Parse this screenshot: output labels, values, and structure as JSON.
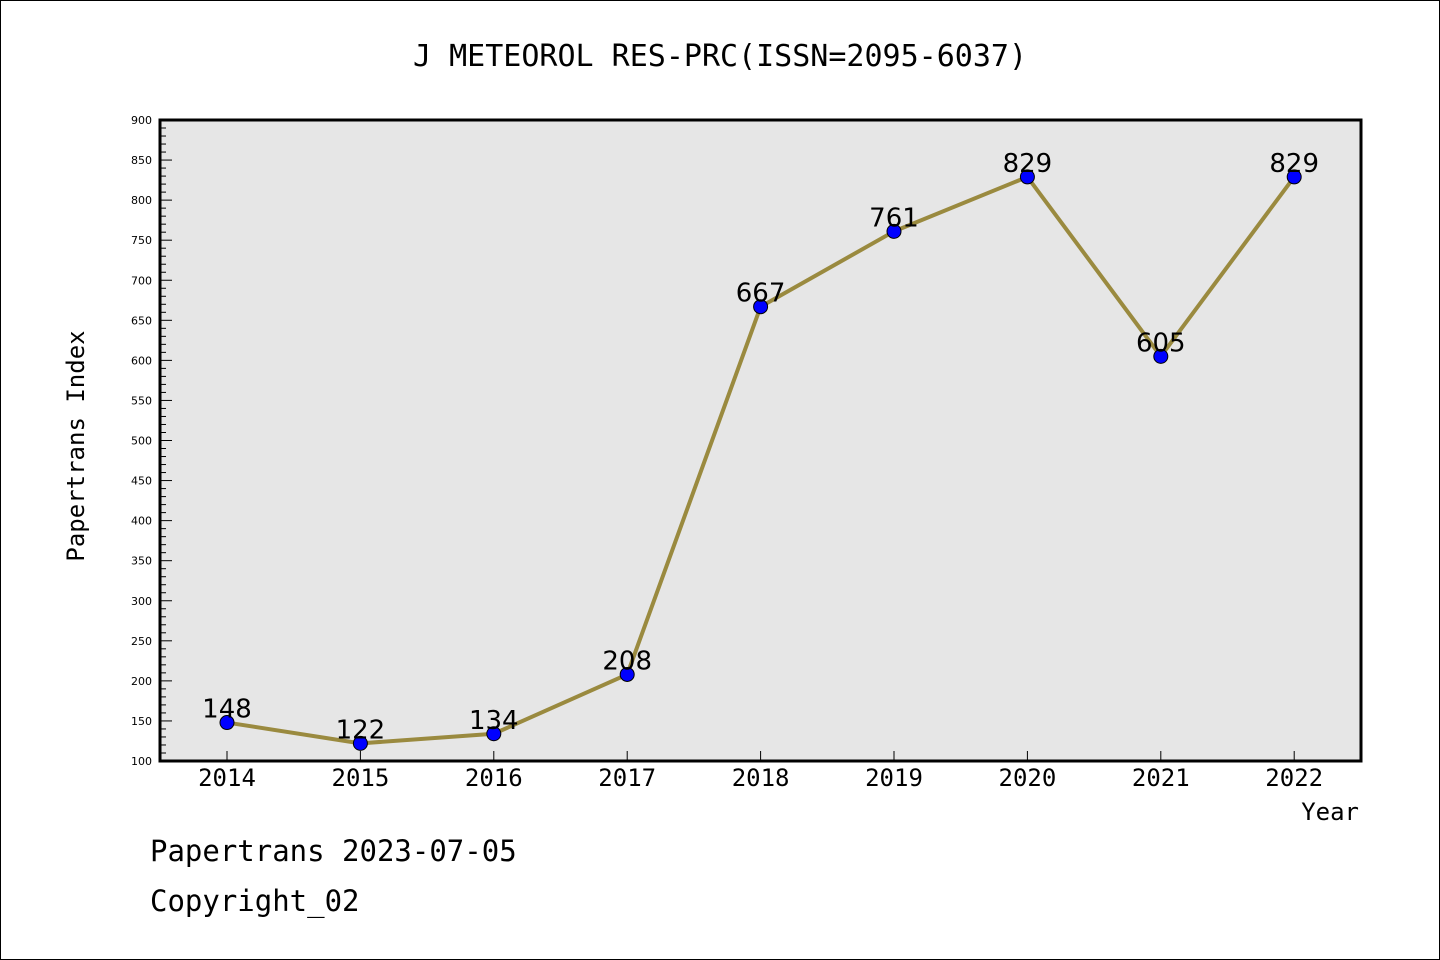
{
  "chart_data": {
    "type": "line",
    "title": "J METEOROL RES-PRC(ISSN=2095-6037)",
    "xlabel": "Year",
    "ylabel": "Papertrans Index",
    "categories": [
      "2014",
      "2015",
      "2016",
      "2017",
      "2018",
      "2019",
      "2020",
      "2021",
      "2022"
    ],
    "values": [
      148,
      122,
      134,
      208,
      667,
      761,
      829,
      605,
      829
    ],
    "data_labels": [
      "148",
      "122",
      "134",
      "208",
      "667",
      "761",
      "829",
      "605",
      "829"
    ],
    "ylim": [
      100,
      900
    ],
    "yticks": [
      100,
      150,
      200,
      250,
      300,
      350,
      400,
      450,
      500,
      550,
      600,
      650,
      700,
      750,
      800,
      850,
      900
    ],
    "grid": false,
    "plot_background": "#e6e6e6",
    "line_color": "#9a8a3f",
    "marker_color": "#0000ff"
  },
  "footer": {
    "line1": "Papertrans 2023-07-05",
    "line2": "Copyright_02"
  }
}
